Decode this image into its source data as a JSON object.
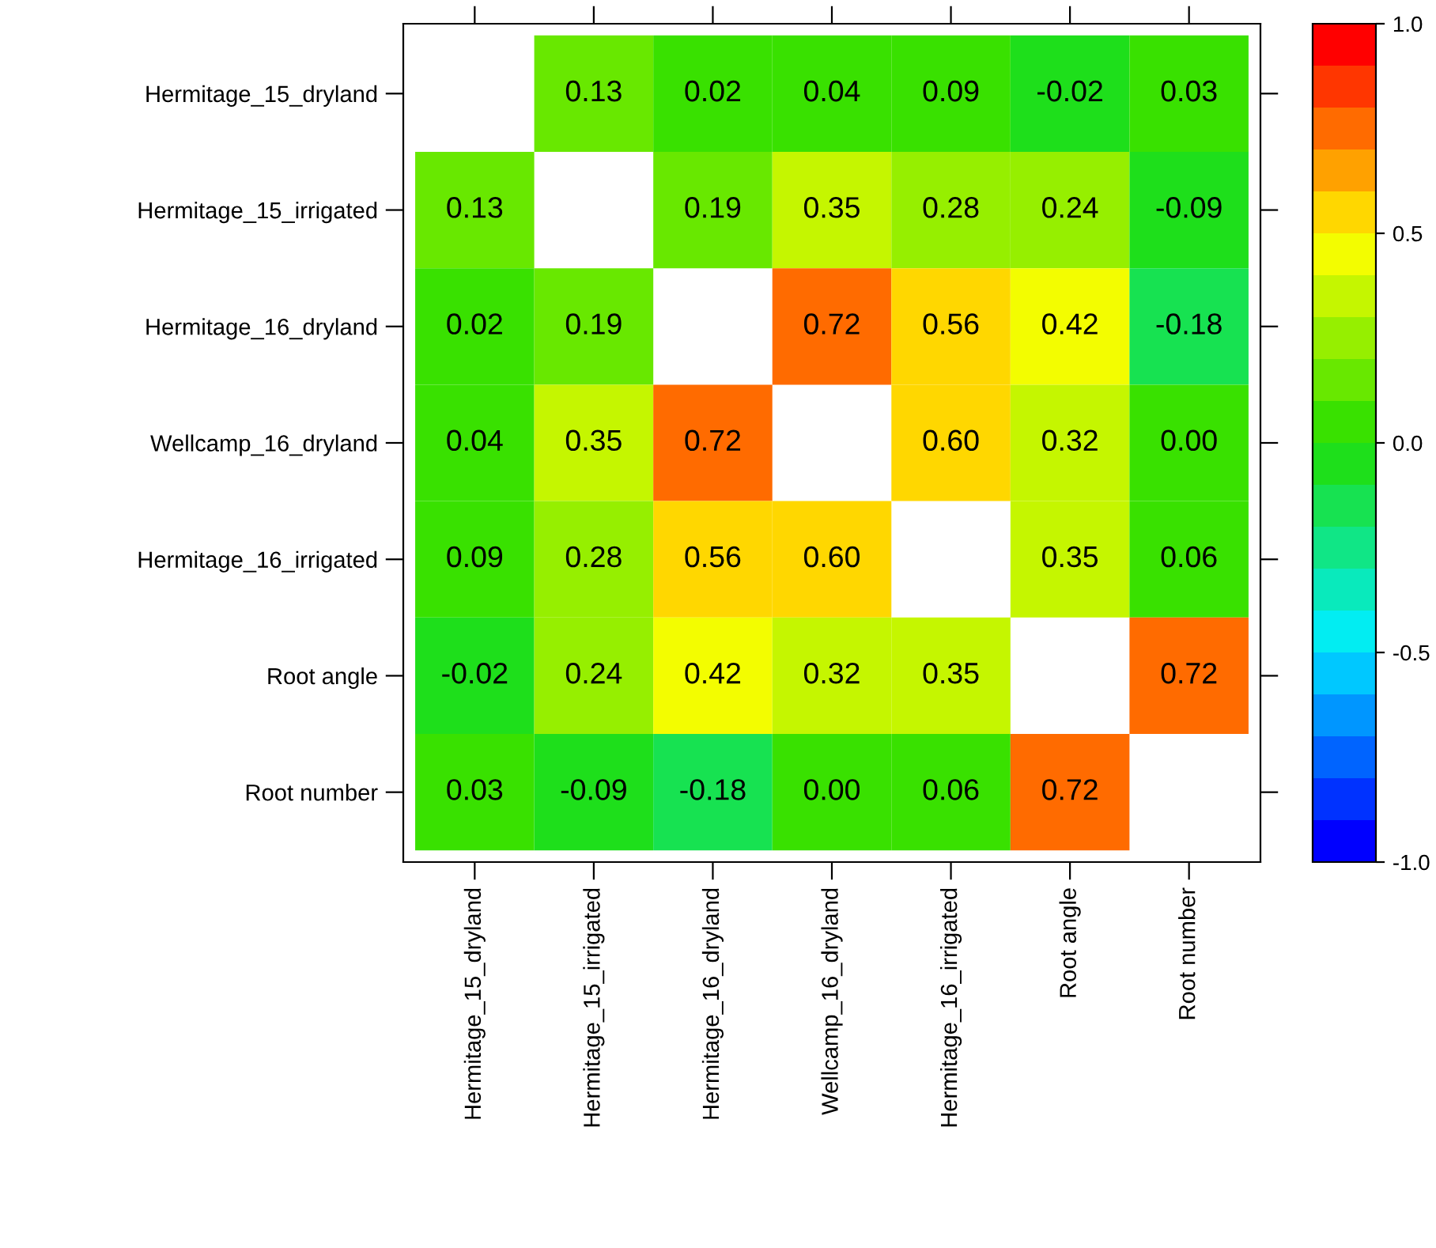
{
  "chart_data": {
    "type": "heatmap",
    "categories": [
      "Hermitage_15_dryland",
      "Hermitage_15_irrigated",
      "Hermitage_16_dryland",
      "Wellcamp_16_dryland",
      "Hermitage_16_irrigated",
      "Root angle",
      "Root number"
    ],
    "y_categories": [
      "Hermitage_15_dryland",
      "Hermitage_15_irrigated",
      "Hermitage_16_dryland",
      "Wellcamp_16_dryland",
      "Hermitage_16_irrigated",
      "Root angle",
      "Root number"
    ],
    "cells": [
      [
        null,
        0.13,
        0.02,
        0.04,
        0.09,
        -0.02,
        0.03
      ],
      [
        0.13,
        null,
        0.19,
        0.35,
        0.28,
        0.24,
        -0.09
      ],
      [
        0.02,
        0.19,
        null,
        0.72,
        0.56,
        0.42,
        -0.18
      ],
      [
        0.04,
        0.35,
        0.72,
        null,
        0.6,
        0.32,
        0.0
      ],
      [
        0.09,
        0.28,
        0.56,
        0.6,
        null,
        0.35,
        0.06
      ],
      [
        -0.02,
        0.24,
        0.42,
        0.32,
        0.35,
        null,
        0.72
      ],
      [
        0.03,
        -0.09,
        -0.18,
        0.0,
        0.06,
        0.72,
        null
      ]
    ],
    "cell_labels": [
      [
        null,
        "0.13",
        "0.02",
        "0.04",
        "0.09",
        "-0.02",
        "0.03"
      ],
      [
        "0.13",
        null,
        "0.19",
        "0.35",
        "0.28",
        "0.24",
        "-0.09"
      ],
      [
        "0.02",
        "0.19",
        null,
        "0.72",
        "0.56",
        "0.42",
        "-0.18"
      ],
      [
        "0.04",
        "0.35",
        "0.72",
        null,
        "0.60",
        "0.32",
        "0.00"
      ],
      [
        "0.09",
        "0.28",
        "0.56",
        "0.60",
        null,
        "0.35",
        "0.06"
      ],
      [
        "-0.02",
        "0.24",
        "0.42",
        "0.32",
        "0.35",
        null,
        "0.72"
      ],
      [
        "0.03",
        "-0.09",
        "-0.18",
        "0.00",
        "0.06",
        "0.72",
        null
      ]
    ],
    "clim": [
      -1.0,
      1.0
    ],
    "cticks": [
      {
        "value": -1.0,
        "label": "-1.0"
      },
      {
        "value": -0.5,
        "label": "-0.5"
      },
      {
        "value": 0.0,
        "label": "0.0"
      },
      {
        "value": 0.5,
        "label": "0.5"
      },
      {
        "value": 1.0,
        "label": "1.0"
      }
    ]
  }
}
